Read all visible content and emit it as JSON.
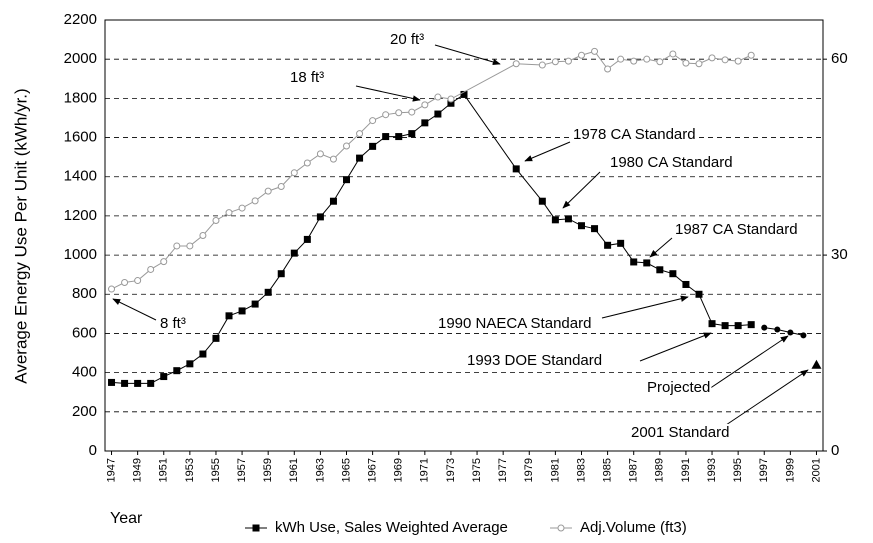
{
  "chart_data": {
    "type": "line",
    "xlabel": "Year",
    "ylabel": "Average Energy Use Per Unit (kWh/yr.)",
    "xlim": [
      1946.5,
      2001.5
    ],
    "xticks": [
      1947,
      1949,
      1951,
      1953,
      1955,
      1957,
      1959,
      1961,
      1963,
      1965,
      1967,
      1969,
      1971,
      1973,
      1975,
      1977,
      1979,
      1981,
      1983,
      1985,
      1987,
      1989,
      1991,
      1993,
      1995,
      1997,
      1999,
      2001
    ],
    "ylim": [
      0,
      2200
    ],
    "yticks": [
      0,
      200,
      400,
      600,
      800,
      1000,
      1200,
      1400,
      1600,
      1800,
      2000,
      2200
    ],
    "y2lim": [
      0,
      66
    ],
    "y2ticks": [
      0,
      30,
      60
    ],
    "grid": true,
    "legend": "bottom",
    "series": [
      {
        "name": "kWh Use, Sales Weighted Average",
        "color": "#000000",
        "marker": "square",
        "x": [
          1947,
          1948,
          1949,
          1950,
          1951,
          1952,
          1953,
          1954,
          1955,
          1956,
          1957,
          1958,
          1959,
          1960,
          1961,
          1962,
          1963,
          1964,
          1965,
          1966,
          1967,
          1968,
          1969,
          1970,
          1971,
          1972,
          1973,
          1974,
          1978,
          1980,
          1981,
          1982,
          1983,
          1984,
          1985,
          1986,
          1987,
          1988,
          1989,
          1990,
          1991,
          1992,
          1993,
          1994,
          1995,
          1996
        ],
        "values": [
          350,
          345,
          345,
          345,
          380,
          410,
          445,
          495,
          575,
          690,
          715,
          750,
          810,
          905,
          1010,
          1080,
          1195,
          1275,
          1385,
          1495,
          1555,
          1605,
          1605,
          1620,
          1675,
          1720,
          1775,
          1820,
          1440,
          1275,
          1180,
          1185,
          1150,
          1135,
          1050,
          1060,
          965,
          960,
          925,
          905,
          850,
          800,
          650,
          640,
          640,
          645
        ]
      },
      {
        "color": "#000000",
        "marker": "dot",
        "x": [
          1997,
          1998,
          1999,
          2000
        ],
        "values": [
          630,
          620,
          605,
          590
        ]
      },
      {
        "color": "#000000",
        "marker": "triangle",
        "x": [
          2001
        ],
        "values": [
          440
        ]
      },
      {
        "name": "Adj.Volume (ft3)",
        "color": "#999999",
        "marker": "circle",
        "axis": "y2",
        "x": [
          1947,
          1948,
          1949,
          1950,
          1951,
          1952,
          1953,
          1954,
          1955,
          1956,
          1957,
          1958,
          1959,
          1960,
          1961,
          1962,
          1963,
          1964,
          1965,
          1966,
          1967,
          1968,
          1969,
          1970,
          1971,
          1972,
          1973,
          1978,
          1980,
          1981,
          1982,
          1983,
          1984,
          1985,
          1986,
          1987,
          1988,
          1989,
          1990,
          1991,
          1992,
          1993,
          1994,
          1995,
          1996
        ],
        "values": [
          24.8,
          25.8,
          26.1,
          27.8,
          29.0,
          31.4,
          31.4,
          33.0,
          35.3,
          36.5,
          37.2,
          38.3,
          39.8,
          40.5,
          42.6,
          44.1,
          45.5,
          44.7,
          46.7,
          48.6,
          50.6,
          51.5,
          51.8,
          51.9,
          53.0,
          54.2,
          53.9,
          59.3,
          59.1,
          59.6,
          59.7,
          60.6,
          61.2,
          58.5,
          60.0,
          59.7,
          60.0,
          59.6,
          60.8,
          59.4,
          59.3,
          60.2,
          59.9,
          59.7,
          60.6
        ]
      }
    ],
    "annotations": [
      "20 ft³",
      "18 ft³",
      "8 ft³",
      "1978 CA Standard",
      "1980 CA Standard",
      "1987 CA Standard",
      "1990 NAECA Standard",
      "1993 DOE Standard",
      "Projected",
      "2001 Standard"
    ]
  }
}
